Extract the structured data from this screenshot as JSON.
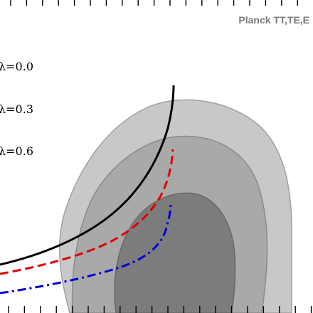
{
  "chart_data": {
    "type": "contour",
    "title": "",
    "xlabel": "",
    "ylabel": "",
    "dataset_label": "Planck TT,TE,E",
    "contours": [
      {
        "level": "outer",
        "color": "#c8c8c8"
      },
      {
        "level": "middle",
        "color": "#a9a9a9"
      },
      {
        "level": "inner",
        "color": "#7c7c7c"
      }
    ],
    "series": [
      {
        "name": "λ=0.0",
        "style": "solid",
        "color": "#000000"
      },
      {
        "name": "λ=0.3",
        "style": "dashed",
        "color": "#e00000"
      },
      {
        "name": "λ=0.6",
        "style": "dash-dot",
        "color": "#0000d8"
      }
    ]
  }
}
